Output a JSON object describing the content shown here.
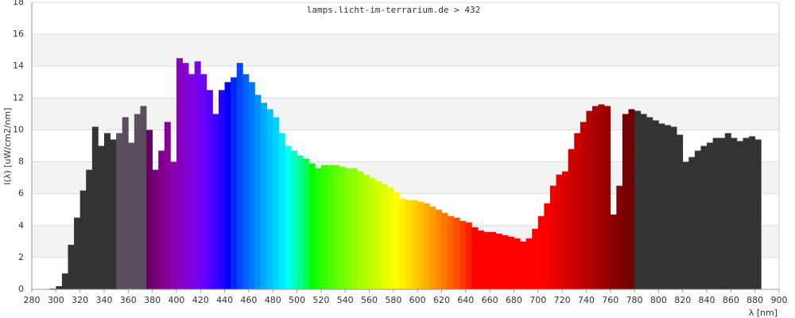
{
  "chart_data": {
    "type": "spectrum",
    "title": "lamps.licht-im-terrarium.de > 432",
    "y_label": "I(λ) [uW/cm2/nm]",
    "x_label": "λ [nm]",
    "x": [
      295,
      300,
      305,
      310,
      315,
      320,
      325,
      330,
      335,
      340,
      345,
      350,
      355,
      360,
      365,
      370,
      375,
      380,
      385,
      390,
      395,
      400,
      405,
      410,
      415,
      420,
      425,
      430,
      435,
      440,
      445,
      450,
      455,
      460,
      465,
      470,
      475,
      480,
      485,
      490,
      495,
      500,
      505,
      510,
      515,
      520,
      525,
      530,
      535,
      540,
      545,
      550,
      555,
      560,
      565,
      570,
      575,
      580,
      585,
      590,
      595,
      600,
      605,
      610,
      615,
      620,
      625,
      630,
      635,
      640,
      645,
      650,
      655,
      660,
      665,
      670,
      675,
      680,
      685,
      690,
      695,
      700,
      705,
      710,
      715,
      720,
      725,
      730,
      735,
      740,
      745,
      750,
      755,
      760,
      765,
      770,
      775,
      780,
      785,
      790,
      795,
      800,
      805,
      810,
      815,
      820,
      825,
      830,
      835,
      840,
      845,
      850,
      855,
      860,
      865,
      870,
      875,
      880
    ],
    "values": [
      0.05,
      0.2,
      1.0,
      2.8,
      4.5,
      6.2,
      7.5,
      10.2,
      9.0,
      9.8,
      9.4,
      9.8,
      10.8,
      9.2,
      11.0,
      11.5,
      10.0,
      7.5,
      8.7,
      10.5,
      8.0,
      14.5,
      14.2,
      13.5,
      14.3,
      13.5,
      12.5,
      11.0,
      12.5,
      13.0,
      13.3,
      14.2,
      13.5,
      13.0,
      12.2,
      11.7,
      11.3,
      10.8,
      9.8,
      9.0,
      8.7,
      8.4,
      8.2,
      7.9,
      7.6,
      7.8,
      7.8,
      7.8,
      7.7,
      7.6,
      7.6,
      7.4,
      7.2,
      7.0,
      6.8,
      6.6,
      6.4,
      6.1,
      5.7,
      5.6,
      5.6,
      5.5,
      5.4,
      5.2,
      5.0,
      4.8,
      4.6,
      4.5,
      4.3,
      4.2,
      3.9,
      3.7,
      3.6,
      3.6,
      3.5,
      3.4,
      3.3,
      3.2,
      3.0,
      3.2,
      3.8,
      4.6,
      5.4,
      6.5,
      7.2,
      7.4,
      8.8,
      9.8,
      10.5,
      11.2,
      11.5,
      11.6,
      11.5,
      4.7,
      6.5,
      11.0,
      11.3,
      11.2,
      11.0,
      10.8,
      10.6,
      10.4,
      10.3,
      10.2,
      9.7,
      8.0,
      8.3,
      8.7,
      9.0,
      9.2,
      9.5,
      9.5,
      9.8,
      9.5,
      9.3,
      9.5,
      9.6,
      9.4
    ],
    "bin_width": 5,
    "xlim": [
      280,
      900
    ],
    "xticks": [
      280,
      300,
      320,
      340,
      360,
      380,
      400,
      420,
      440,
      460,
      480,
      500,
      520,
      540,
      560,
      580,
      600,
      620,
      640,
      660,
      680,
      700,
      720,
      740,
      760,
      780,
      800,
      820,
      840,
      860,
      880,
      900
    ],
    "ylim": [
      0,
      18
    ],
    "yticks": [
      0,
      2,
      4,
      6,
      8,
      10,
      12,
      14,
      16,
      18
    ],
    "grid": true,
    "grid_bands": true
  }
}
